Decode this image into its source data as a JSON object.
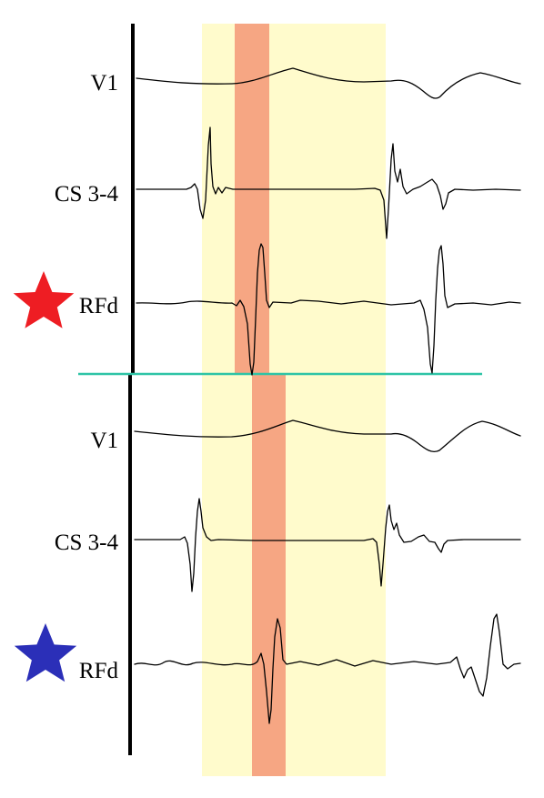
{
  "colors": {
    "window_band": "#fffbcc",
    "highlight_band": "#f6a683",
    "separator": "#2ec4a6",
    "star_top": "#ee1d23",
    "star_bottom": "#2b2fb8",
    "trace": "#000000"
  },
  "panels": [
    {
      "star": "red-star-icon",
      "leads": [
        "V1",
        "CS 3-4",
        "RFd"
      ]
    },
    {
      "star": "blue-star-icon",
      "leads": [
        "V1",
        "CS 3-4",
        "RFd"
      ]
    }
  ]
}
